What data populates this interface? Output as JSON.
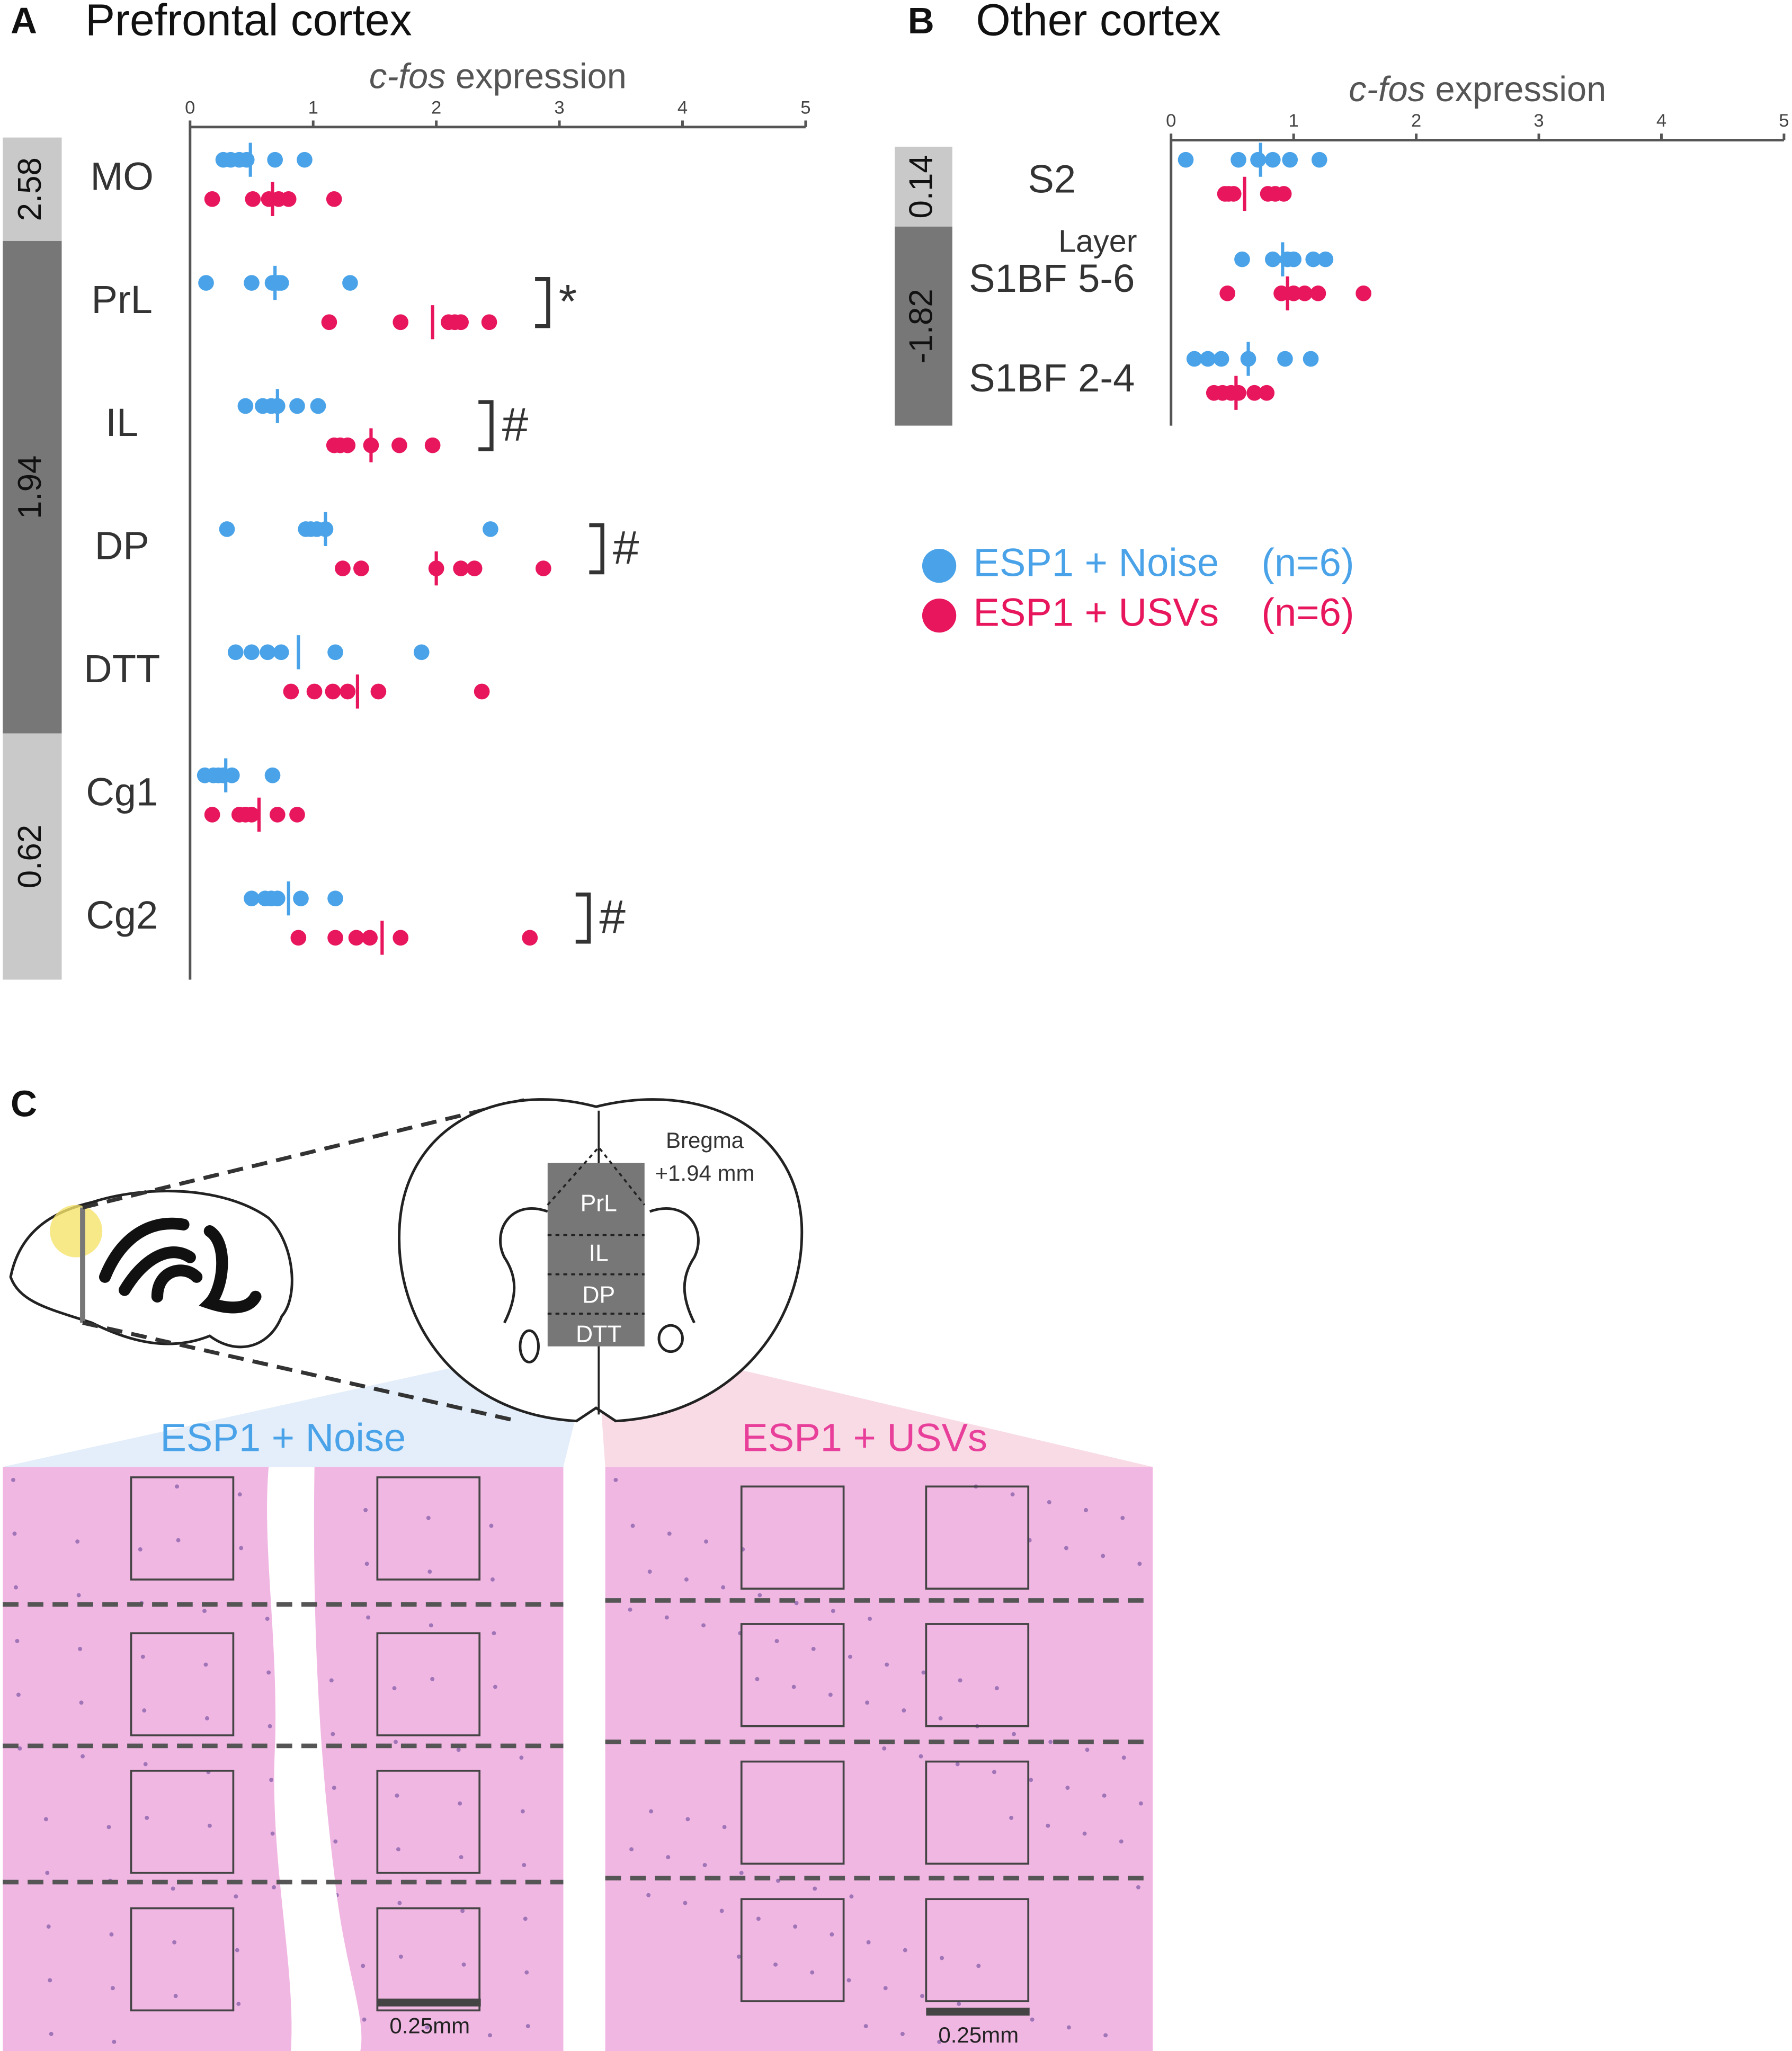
{
  "chart_data": [
    {
      "type": "strip",
      "panel": "A",
      "title": "Prefrontal cortex",
      "xlabel_parts": [
        "c-fos",
        " expression"
      ],
      "xlim": [
        0,
        5
      ],
      "xticks": [
        0,
        1,
        2,
        3,
        4,
        5
      ],
      "categories": [
        "MO",
        "PrL",
        "IL",
        "DP",
        "DTT",
        "Cg1",
        "Cg2"
      ],
      "bregma_groups": [
        {
          "label": "2.58",
          "categories": [
            "MO"
          ],
          "shade": "light"
        },
        {
          "label": "1.94",
          "categories": [
            "PrL",
            "IL",
            "DP",
            "DTT"
          ],
          "shade": "dark"
        },
        {
          "label": "0.62",
          "categories": [
            "Cg1",
            "Cg2"
          ],
          "shade": "light"
        }
      ],
      "annotations": [
        null,
        "*",
        "#",
        "#",
        null,
        null,
        "#"
      ],
      "series": [
        {
          "color": "#4aa3e8",
          "values": [
            [
              0.27,
              0.33,
              0.4,
              0.46,
              0.69,
              0.93
            ],
            [
              0.13,
              0.5,
              0.67,
              0.72,
              0.74,
              1.3
            ],
            [
              0.45,
              0.59,
              0.66,
              0.71,
              0.87,
              1.04
            ],
            [
              0.3,
              0.94,
              0.98,
              1.03,
              1.1,
              2.44
            ],
            [
              0.37,
              0.5,
              0.63,
              0.74,
              1.18,
              1.88
            ],
            [
              0.12,
              0.19,
              0.23,
              0.27,
              0.34,
              0.67
            ],
            [
              0.5,
              0.61,
              0.66,
              0.71,
              0.9,
              1.18
            ]
          ],
          "means": [
            0.49,
            0.69,
            0.71,
            1.1,
            0.88,
            0.29,
            0.8
          ]
        },
        {
          "color": "#e8175d",
          "values": [
            [
              0.18,
              0.51,
              0.64,
              0.72,
              0.8,
              1.17
            ],
            [
              1.13,
              1.71,
              2.1,
              2.15,
              2.2,
              2.43
            ],
            [
              1.17,
              1.22,
              1.28,
              1.47,
              1.7,
              1.97
            ],
            [
              1.24,
              1.39,
              2.0,
              2.2,
              2.31,
              2.87
            ],
            [
              0.82,
              1.01,
              1.16,
              1.28,
              1.53,
              2.37
            ],
            [
              0.18,
              0.4,
              0.45,
              0.5,
              0.71,
              0.87
            ],
            [
              0.88,
              1.18,
              1.35,
              1.46,
              1.71,
              2.76
            ]
          ],
          "means": [
            0.67,
            1.97,
            1.47,
            2.0,
            1.36,
            0.56,
            1.56
          ]
        }
      ]
    },
    {
      "type": "strip",
      "panel": "B",
      "title": "Other cortex",
      "xlabel_parts": [
        "c-fos",
        " expression"
      ],
      "xlim": [
        0,
        5
      ],
      "xticks": [
        0,
        1,
        2,
        3,
        4,
        5
      ],
      "categories": [
        "S2",
        "S1BF 5-6",
        "S1BF 2-4"
      ],
      "category_header": "Layer",
      "bregma_groups": [
        {
          "label": "0.14",
          "categories": [
            "S2"
          ],
          "shade": "light"
        },
        {
          "label": "-1.82",
          "categories": [
            "S1BF 5-6",
            "S1BF 2-4"
          ],
          "shade": "dark"
        }
      ],
      "legend": true,
      "series": [
        {
          "name": "ESP1 + Noise",
          "n": "(n=6)",
          "color": "#4aa3e8",
          "values": [
            [
              0.12,
              0.55,
              0.71,
              0.83,
              0.97,
              1.21
            ],
            [
              0.58,
              0.83,
              0.95,
              1.0,
              1.16,
              1.26
            ],
            [
              0.19,
              0.3,
              0.41,
              0.63,
              0.93,
              1.14
            ]
          ],
          "means": [
            0.73,
            0.91,
            0.63
          ]
        },
        {
          "name": "ESP1 + USVs",
          "n": "(n=6)",
          "color": "#e8175d",
          "values": [
            [
              0.44,
              0.47,
              0.51,
              0.79,
              0.85,
              0.92
            ],
            [
              0.46,
              0.9,
              1.0,
              1.09,
              1.2,
              1.57
            ],
            [
              0.35,
              0.42,
              0.49,
              0.55,
              0.68,
              0.78
            ]
          ],
          "means": [
            0.6,
            0.95,
            0.53
          ]
        }
      ]
    }
  ],
  "panel_c": {
    "label": "C",
    "bregma": [
      "Bregma",
      "+1.94 mm"
    ],
    "regions": [
      "PrL",
      "IL",
      "DP",
      "DTT"
    ],
    "images": [
      {
        "title": "ESP1 + Noise",
        "scale": "0.25mm"
      },
      {
        "title": "ESP1 + USVs",
        "scale": "0.25mm"
      }
    ]
  }
}
